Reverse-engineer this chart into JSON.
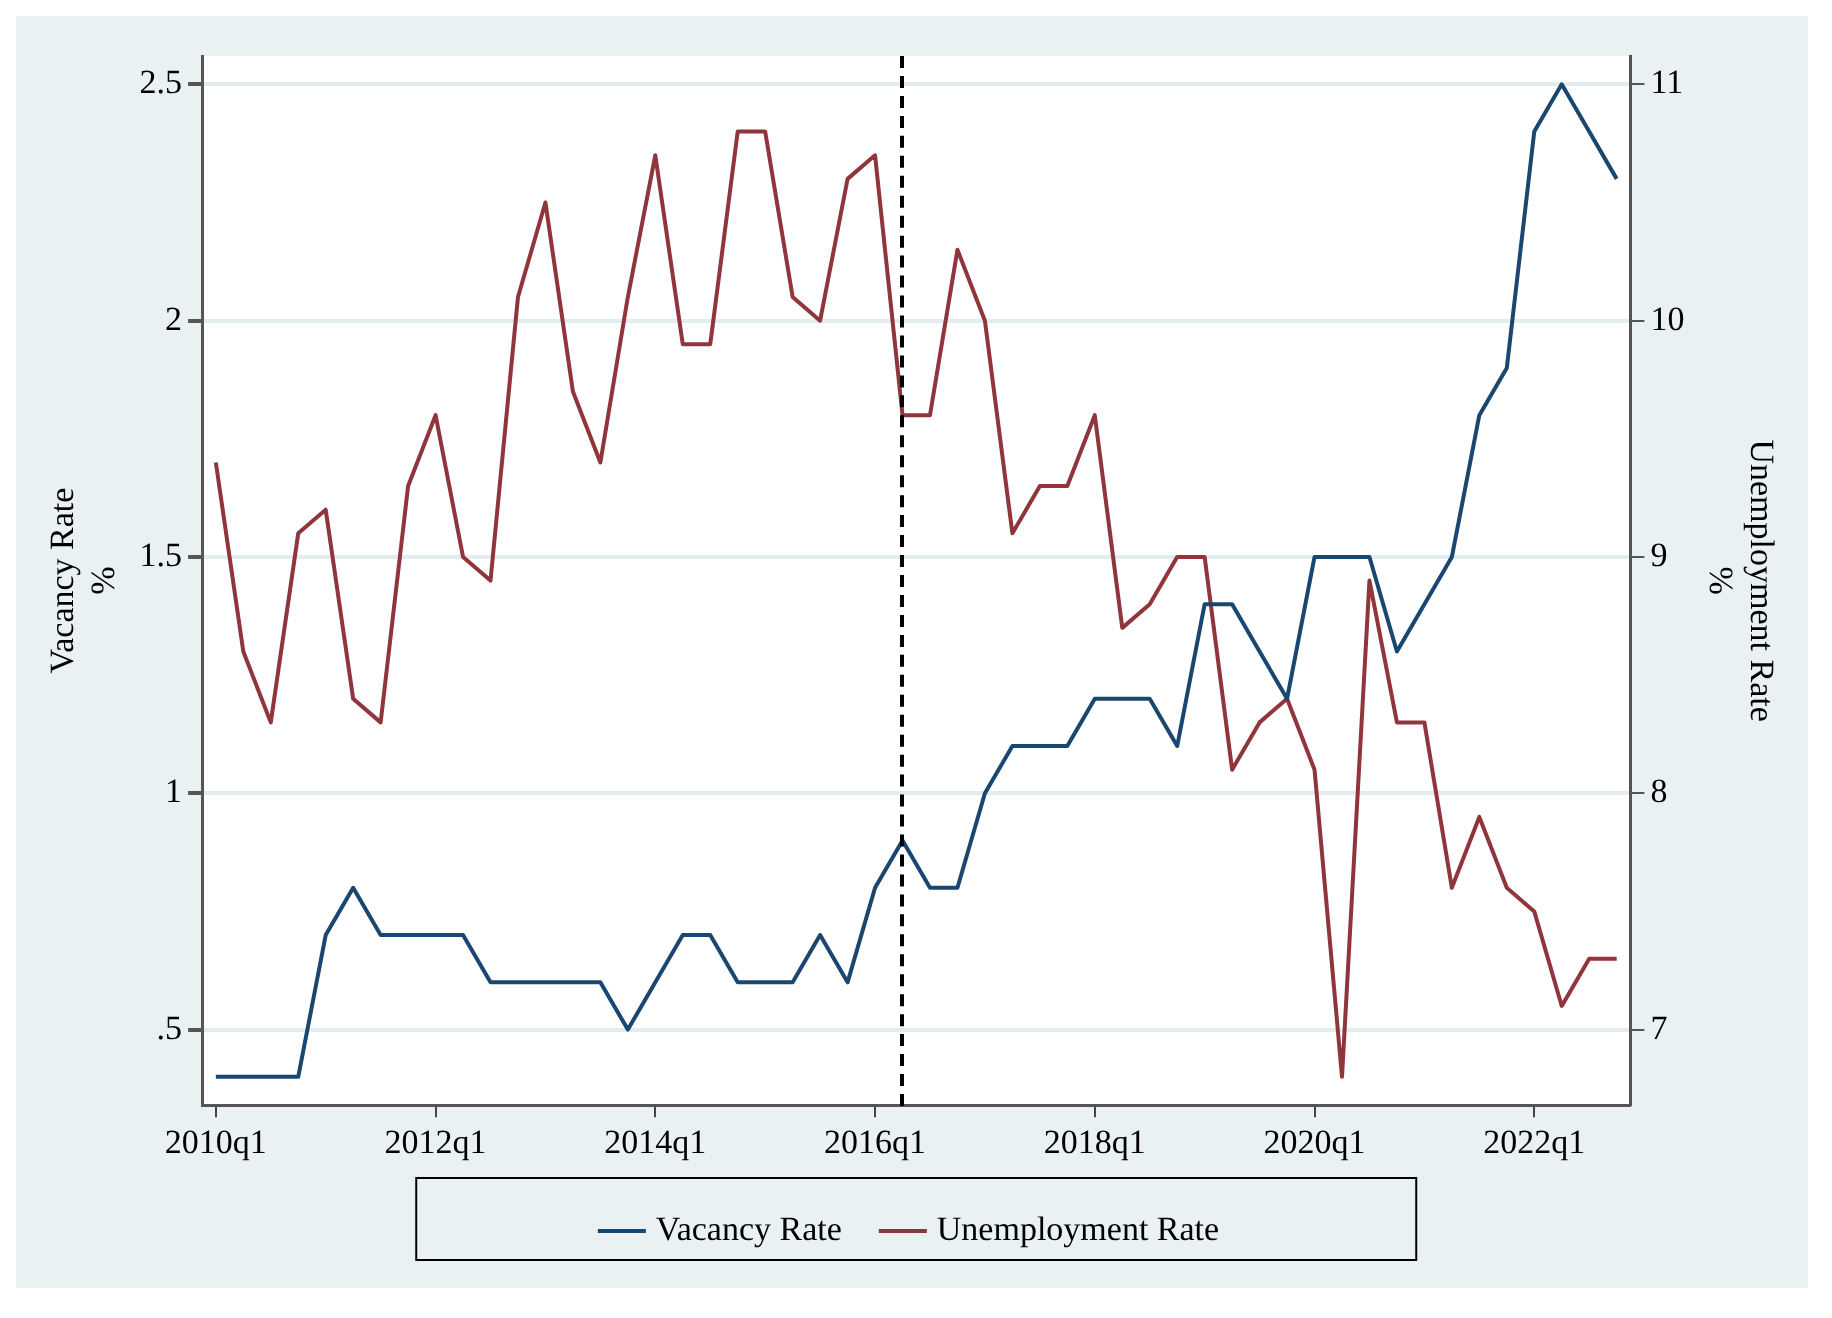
{
  "chart_data": {
    "type": "line",
    "xlabel": null,
    "ylabel": "Vacancy Rate\n%",
    "y2label": "Unemployment Rate\n%",
    "categories": [
      "2010q1",
      null,
      null,
      null,
      null,
      null,
      null,
      null,
      "2012q1",
      null,
      null,
      null,
      null,
      null,
      null,
      null,
      "2014q1",
      null,
      null,
      null,
      null,
      null,
      null,
      null,
      "2016q1",
      null,
      null,
      null,
      null,
      null,
      null,
      null,
      "2018q1",
      null,
      null,
      null,
      null,
      null,
      null,
      null,
      "2020q1",
      null,
      null,
      null,
      null,
      null,
      null,
      null,
      "2022q1",
      null,
      null,
      null
    ],
    "series": [
      {
        "name": "Vacancy Rate",
        "color": "#1a476f",
        "values": [
          0.4,
          0.4,
          0.4,
          0.4,
          0.7,
          0.8,
          0.7,
          0.7,
          0.7,
          0.7,
          0.6,
          0.6,
          0.6,
          0.6,
          0.6,
          0.5,
          0.6,
          0.7,
          0.7,
          0.6,
          0.6,
          0.6,
          0.7,
          0.6,
          0.8,
          0.9,
          0.8,
          0.8,
          1.0,
          1.1,
          1.1,
          1.1,
          1.2,
          1.2,
          1.2,
          1.1,
          1.4,
          1.4,
          1.3,
          1.2,
          1.5,
          1.5,
          1.5,
          1.3,
          1.4,
          1.5,
          1.8,
          1.9,
          2.4,
          2.5,
          2.4,
          2.3
        ]
      },
      {
        "name": "Unemployment Rate",
        "color": "#90353b",
        "axis": "y2",
        "values": [
          9.4,
          8.6,
          8.3,
          9.1,
          9.2,
          8.4,
          8.3,
          9.3,
          9.6,
          9.0,
          8.9,
          10.1,
          10.5,
          9.7,
          9.4,
          10.1,
          10.7,
          9.9,
          9.9,
          10.8,
          10.8,
          10.1,
          10.0,
          10.6,
          10.7,
          9.6,
          9.6,
          10.3,
          10.0,
          9.1,
          9.3,
          9.3,
          9.6,
          8.7,
          8.8,
          9.0,
          9.0,
          8.1,
          8.3,
          8.4,
          8.1,
          6.8,
          8.9,
          8.3,
          8.3,
          7.6,
          7.9,
          7.6,
          7.5,
          7.1,
          7.3,
          7.3
        ]
      }
    ],
    "ylim": [
      0.34,
      2.56
    ],
    "yticks": [
      {
        "value": 0.5,
        "label": ".5"
      },
      1,
      1.5,
      2,
      2.5
    ],
    "y2lim": [
      6.68,
      11.12
    ],
    "y2ticks": [
      7,
      8,
      9,
      10,
      11
    ],
    "grid": "y",
    "legend": "bottom",
    "marker": "none",
    "line_style": "solid"
  }
}
